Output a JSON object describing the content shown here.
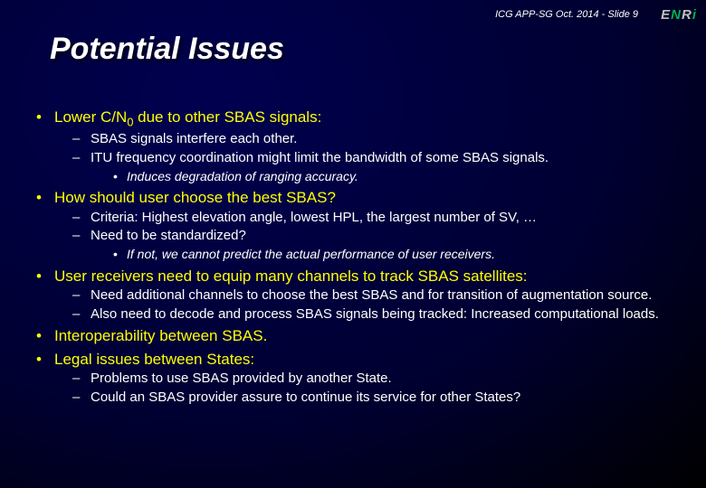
{
  "header": "ICG APP-SG Oct. 2014  - Slide 9",
  "logo": {
    "e": "E",
    "n": "N",
    "r": "R",
    "i": "i"
  },
  "title": "Potential Issues",
  "bullets": [
    {
      "lvl": 1,
      "html": "Lower C/N<span class='sub'>0</span> due to other SBAS signals:"
    },
    {
      "lvl": 2,
      "text": "SBAS signals interfere each other."
    },
    {
      "lvl": 2,
      "text": "ITU frequency coordination might limit the bandwidth of some SBAS signals."
    },
    {
      "lvl": 3,
      "text": "Induces degradation of ranging accuracy."
    },
    {
      "lvl": 1,
      "text": "How should user choose the best SBAS?"
    },
    {
      "lvl": 2,
      "text": "Criteria: Highest elevation angle, lowest HPL, the largest number of SV, …"
    },
    {
      "lvl": 2,
      "text": "Need to be standardized?"
    },
    {
      "lvl": 3,
      "text": "If not, we cannot predict the actual performance of user receivers."
    },
    {
      "lvl": 1,
      "text": "User receivers need to equip many channels to track SBAS satellites:"
    },
    {
      "lvl": 2,
      "text": "Need additional channels to choose the best SBAS and for transition of augmentation source."
    },
    {
      "lvl": 2,
      "text": "Also need to decode and process SBAS signals being tracked: Increased computational loads."
    },
    {
      "lvl": 1,
      "text": "Interoperability between SBAS."
    },
    {
      "lvl": 1,
      "text": "Legal issues between States:"
    },
    {
      "lvl": 2,
      "text": "Problems to use SBAS provided by another State."
    },
    {
      "lvl": 2,
      "text": "Could an SBAS provider assure to continue its service for other States?"
    }
  ]
}
